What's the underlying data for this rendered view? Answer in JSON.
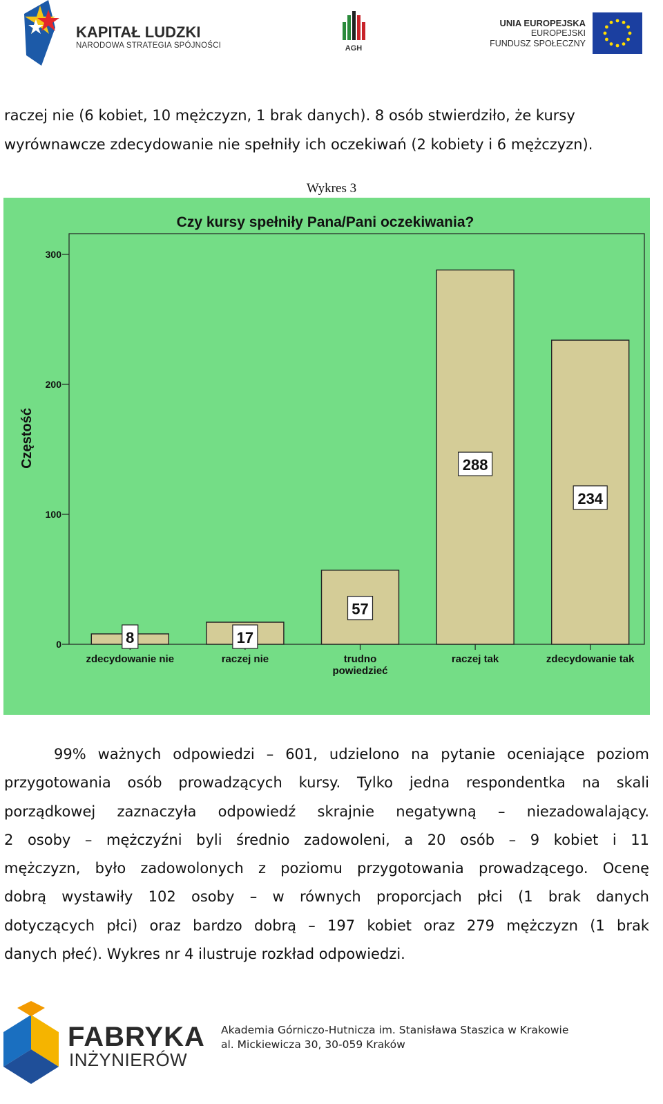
{
  "header": {
    "kl_title": "KAPITAŁ LUDZKI",
    "kl_subtitle": "NARODOWA STRATEGIA SPÓJNOŚCI",
    "agh": "AGH",
    "eu_line1": "UNIA EUROPEJSKA",
    "eu_line2": "EUROPEJSKI",
    "eu_line3": "FUNDUSZ SPOŁECZNY"
  },
  "intro": {
    "line1": "raczej nie (6 kobiet, 10 mężczyzn, 1 brak danych). 8 osób stwierdziło, że kursy",
    "line2": "wyrównawcze zdecydowanie nie spełniły ich oczekiwań (2 kobiety i 6 mężczyzn)."
  },
  "figure_label": "Wykres  3",
  "chart_data": {
    "type": "bar",
    "title": "Czy kursy spełniły Pana/Pani oczekiwania?",
    "ylabel": "Częstość",
    "xlabel": "",
    "categories": [
      "zdecydowanie nie",
      "raczej nie",
      "trudno powiedzieć",
      "raczej tak",
      "zdecydowanie tak"
    ],
    "category_lines": [
      [
        "zdecydowanie nie"
      ],
      [
        "raczej nie"
      ],
      [
        "trudno",
        "powiedzieć"
      ],
      [
        "raczej tak"
      ],
      [
        "zdecydowanie tak"
      ]
    ],
    "values": [
      8,
      17,
      57,
      288,
      234
    ],
    "ylim": [
      0,
      300
    ],
    "yticks": [
      0,
      100,
      200,
      300
    ],
    "ytick_labels": [
      "0",
      "100",
      "200",
      "300"
    ],
    "grid": false,
    "background_color": "#74dd86",
    "bar_color": "#d4cc97"
  },
  "body": {
    "lines": [
      "99% ważnych odpowiedzi – 601, udzielono na pytanie oceniające poziom",
      "przygotowania osób prowadzących kursy. Tylko jedna respondentka na skali",
      "porządkowej zaznaczyła odpowiedź skrajnie negatywną – niezadowalający.",
      "2 osoby – mężczyźni byli średnio zadowoleni, a 20 osób – 9 kobiet i 11",
      "mężczyzn, było zadowolonych z poziomu przygotowania prowadzącego. Ocenę",
      "dobrą wystawiły 102 osoby – w równych proporcjach płci (1 brak danych",
      "dotyczących płci) oraz bardzo dobrą – 197 kobiet oraz 279 mężczyzn (1 brak",
      "danych płeć). Wykres nr 4 ilustruje rozkład odpowiedzi."
    ]
  },
  "footer": {
    "logo_line1": "FABRYKA",
    "logo_line2": "INŻYNIERÓW",
    "address_line1": "Akademia Górniczo-Hutnicza im. Stanisława Staszica w Krakowie",
    "address_line2": "al. Mickiewicza 30, 30-059 Kraków"
  }
}
